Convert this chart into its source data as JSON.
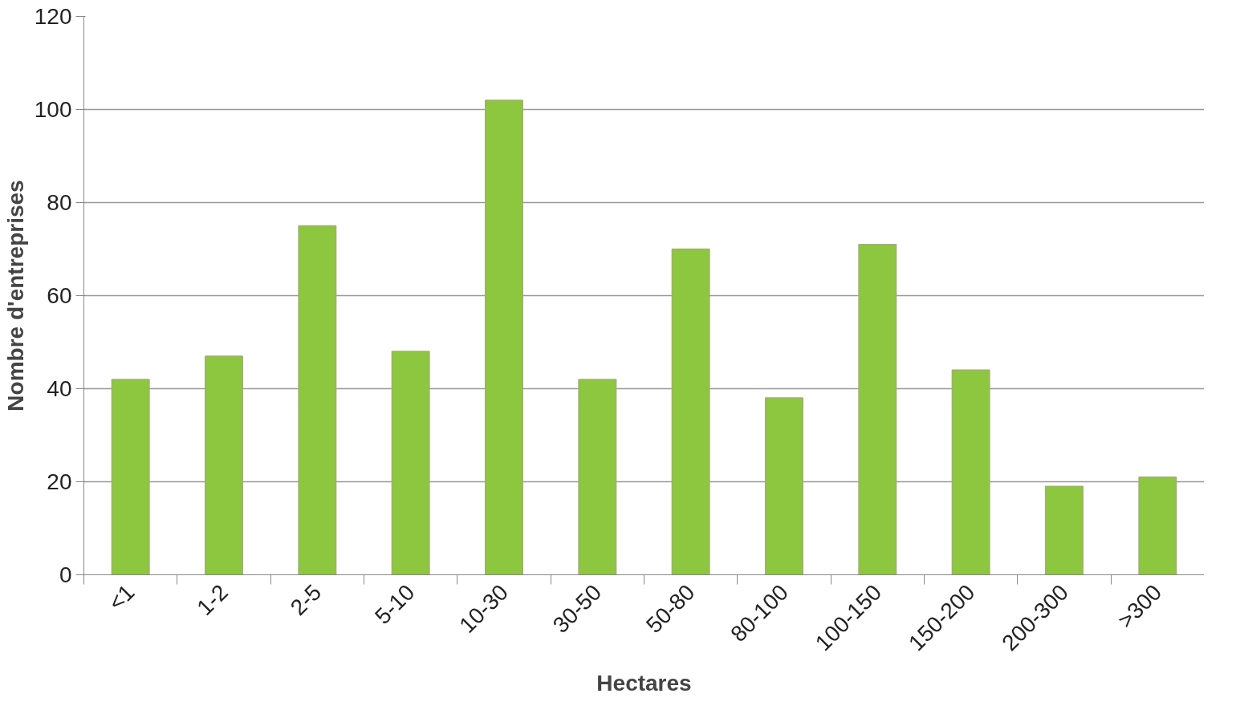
{
  "chart_data": {
    "type": "bar",
    "xlabel": "Hectares",
    "ylabel": "Nombre d'entreprises",
    "categories": [
      "<1",
      "1-2",
      "2-5",
      "5-10",
      "10-30",
      "30-50",
      "50-80",
      "80-100",
      "100-150",
      "150-200",
      "200-300",
      ">300"
    ],
    "values": [
      42,
      47,
      75,
      48,
      102,
      42,
      70,
      38,
      71,
      44,
      19,
      21
    ],
    "color": "#8dc63f",
    "ylim": [
      0,
      120
    ],
    "yticks": [
      0,
      20,
      40,
      60,
      80,
      100,
      120
    ],
    "grid": "y"
  }
}
